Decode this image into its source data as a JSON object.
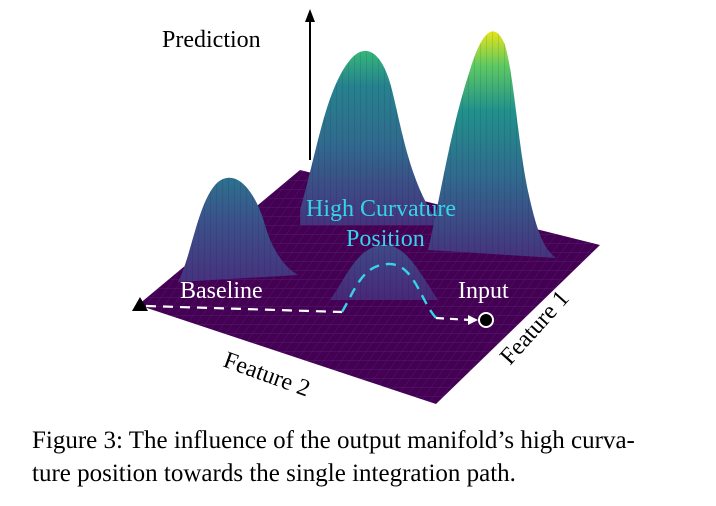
{
  "figure": {
    "labels": {
      "prediction": "Prediction",
      "high_curvature_line1": "High Curvature",
      "high_curvature_line2": "Position",
      "baseline": "Baseline",
      "input": "Input",
      "feature1": "Feature 1",
      "feature2": "Feature 2"
    },
    "colors": {
      "plane": "#440154",
      "plane_grid": "#5b2a7a",
      "peak_low": "#46327e",
      "peak_mid": "#21918c",
      "peak_high": "#5ec962",
      "peak_top": "#e7e419",
      "path": "#ffffff",
      "curvature_path": "#35d4e8",
      "curvature_label": "#35d4e8"
    }
  },
  "caption": {
    "line1": "Figure 3: The influence of the output manifold’s high curva-",
    "line2": "ture position towards the single integration path."
  }
}
